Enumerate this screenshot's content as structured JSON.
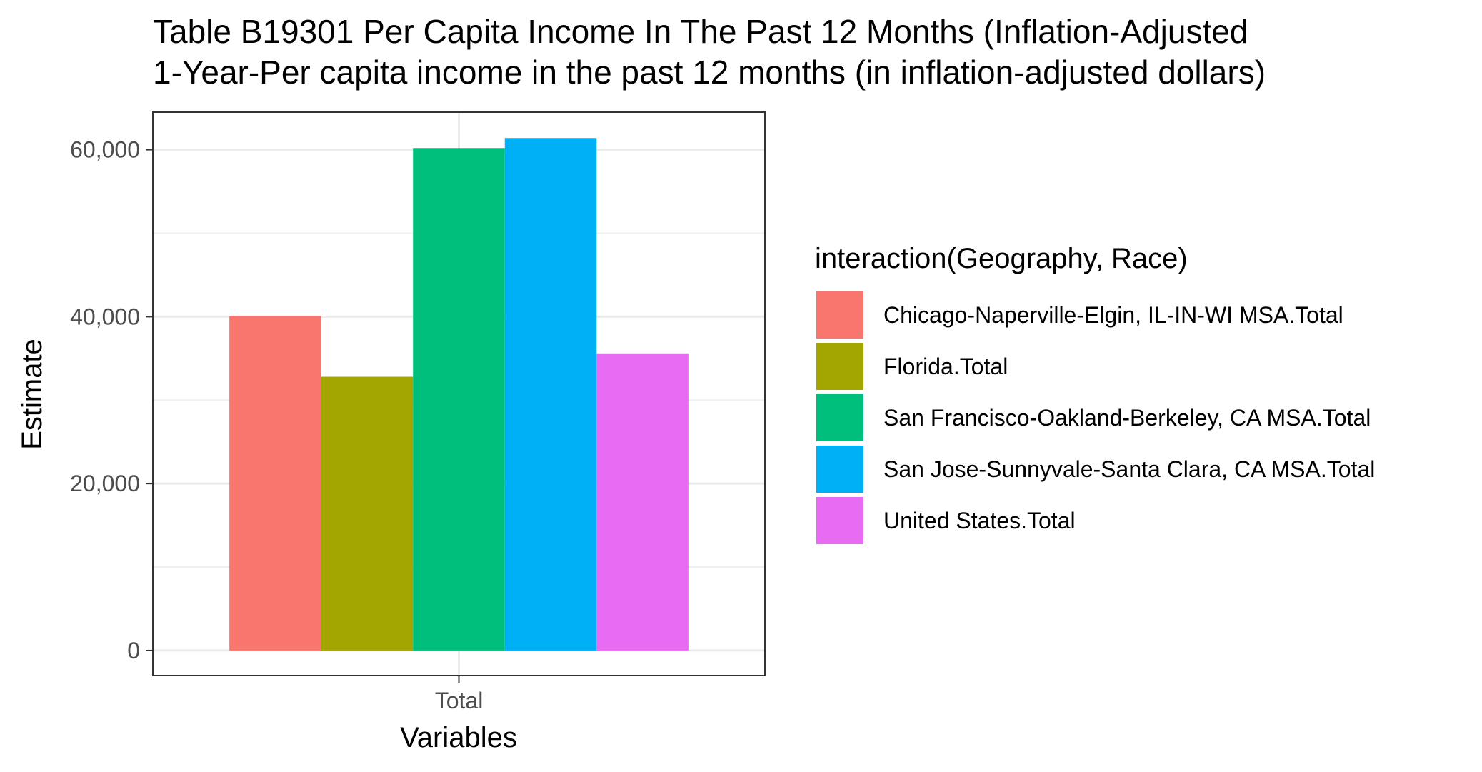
{
  "chart_data": {
    "type": "bar",
    "title_lines": [
      "Table B19301 Per Capita Income In The Past 12 Months (Inflation-Adjusted",
      "1-Year-Per capita income in the past 12 months (in inflation-adjusted dollars)"
    ],
    "xlabel": "Variables",
    "ylabel": "Estimate",
    "categories": [
      "Total"
    ],
    "ylim": [
      -3000,
      64500
    ],
    "yticks": [
      0,
      20000,
      40000,
      60000
    ],
    "ytick_labels": [
      "0",
      "20,000",
      "40,000",
      "60,000"
    ],
    "grid": true,
    "legend": {
      "title": "interaction(Geography, Race)",
      "placement": "right"
    },
    "series": [
      {
        "name": "Chicago-Naperville-Elgin, IL-IN-WI MSA.Total",
        "values": [
          40100
        ],
        "color": "#F8766D"
      },
      {
        "name": "Florida.Total",
        "values": [
          32800
        ],
        "color": "#A3A500"
      },
      {
        "name": "San Francisco-Oakland-Berkeley, CA MSA.Total",
        "values": [
          60200
        ],
        "color": "#00BF7D"
      },
      {
        "name": "San Jose-Sunnyvale-Santa Clara, CA MSA.Total",
        "values": [
          61400
        ],
        "color": "#00B0F6"
      },
      {
        "name": "United States.Total",
        "values": [
          35600
        ],
        "color": "#E76BF3"
      }
    ]
  }
}
